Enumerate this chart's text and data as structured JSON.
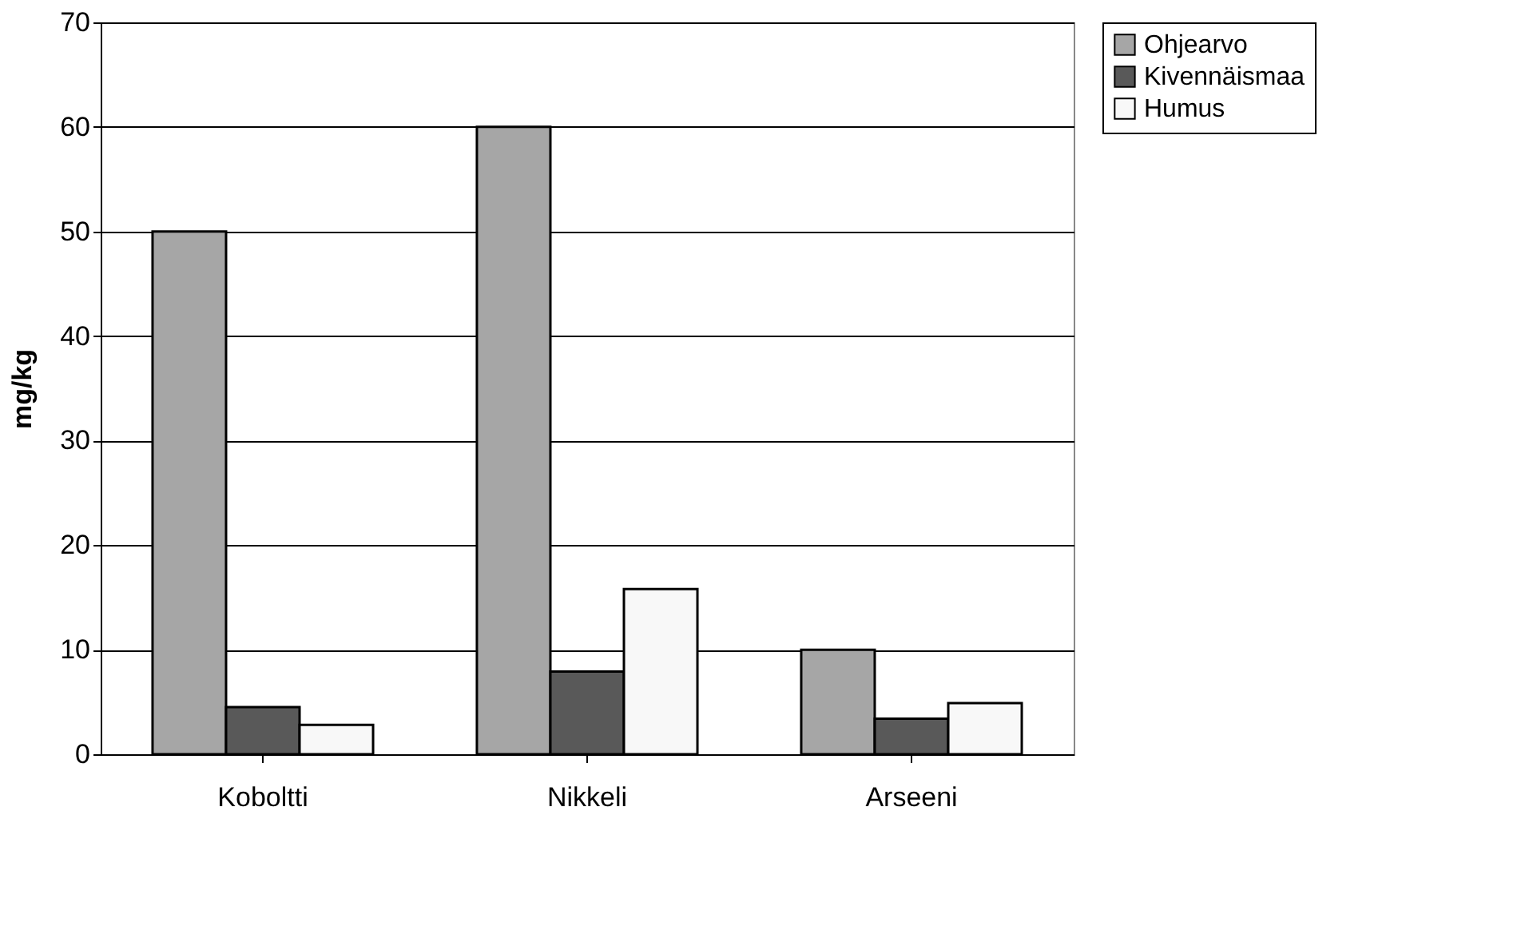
{
  "chart_data": {
    "type": "bar",
    "ylabel": "mg/kg",
    "categories": [
      "Koboltti",
      "Nikkeli",
      "Arseeni"
    ],
    "series": [
      {
        "name": "Ohjearvo",
        "color": "#a6a6a6",
        "values": [
          50,
          60,
          10
        ]
      },
      {
        "name": "Kivennäismaa",
        "color": "#595959",
        "values": [
          4.5,
          7.9,
          3.4
        ]
      },
      {
        "name": "Humus",
        "color": "#f8f8f8",
        "values": [
          2.8,
          15.8,
          4.9
        ]
      }
    ],
    "ylim": [
      0,
      70
    ],
    "yticks": [
      0,
      10,
      20,
      30,
      40,
      50,
      60,
      70
    ],
    "grid": "y",
    "legend": "right"
  }
}
